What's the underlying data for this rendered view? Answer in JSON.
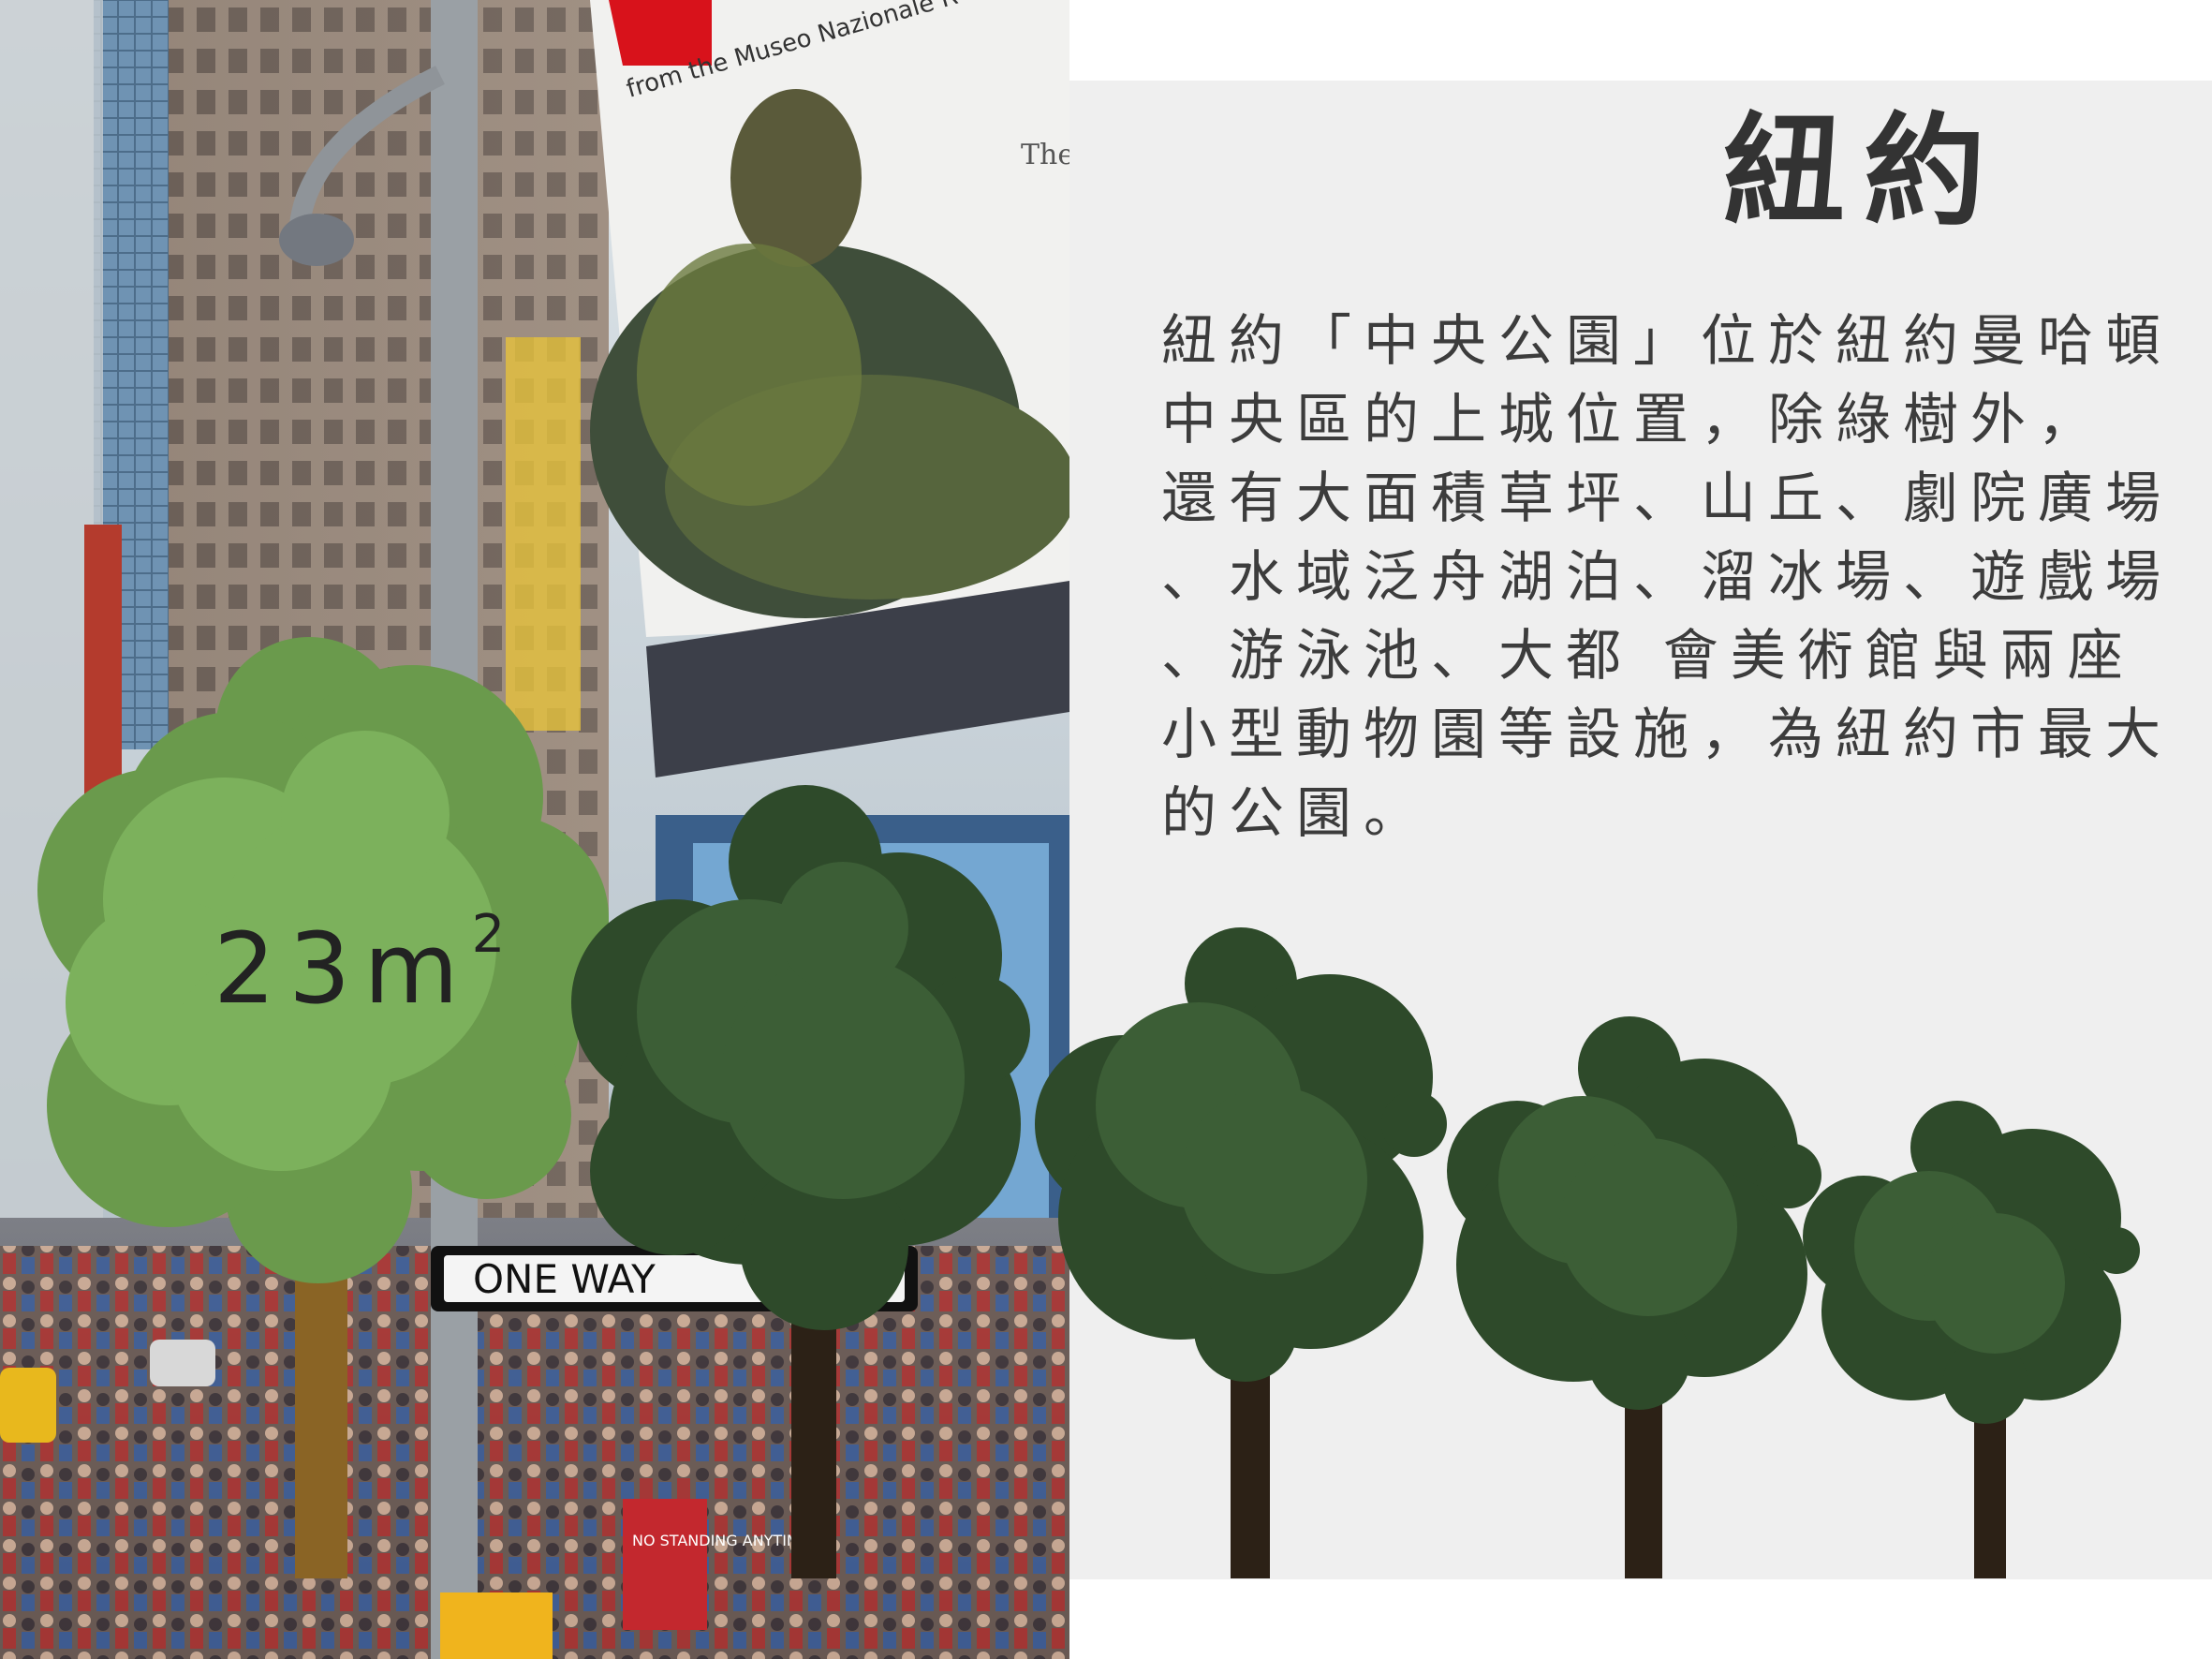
{
  "title": "紐約",
  "description_lines": [
    "紐約「中央公園」位於紐約曼哈頓",
    "中央區的上城位置，除綠樹外，",
    "還有大面積草坪、山丘、劇院廣場",
    "、水域泛舟湖泊、溜冰場、遊戲場",
    "、游泳池、大都 會美術館與兩座",
    "小型動物園等設施，為紐約市最大",
    "的公園。"
  ],
  "area_label": {
    "value": "23m",
    "superscript": "2"
  },
  "photo_texts": {
    "poster_subtitle": "from the Museo Nazionale R",
    "poster_the": "The",
    "street_sign": "ONE WAY",
    "no_standing": "NO STANDING ANYTIME"
  },
  "colors": {
    "panel_background": "#efefef",
    "title_text": "#333333",
    "body_text": "#3c3c3c",
    "light_tree": "#7cb15c",
    "light_tree_shade": "#6a9a4c",
    "dark_tree": "#2e4a2a",
    "dark_tree_shade": "#3c5e36",
    "trunk_brown": "#8a6425",
    "trunk_dark": "#2c2116"
  }
}
